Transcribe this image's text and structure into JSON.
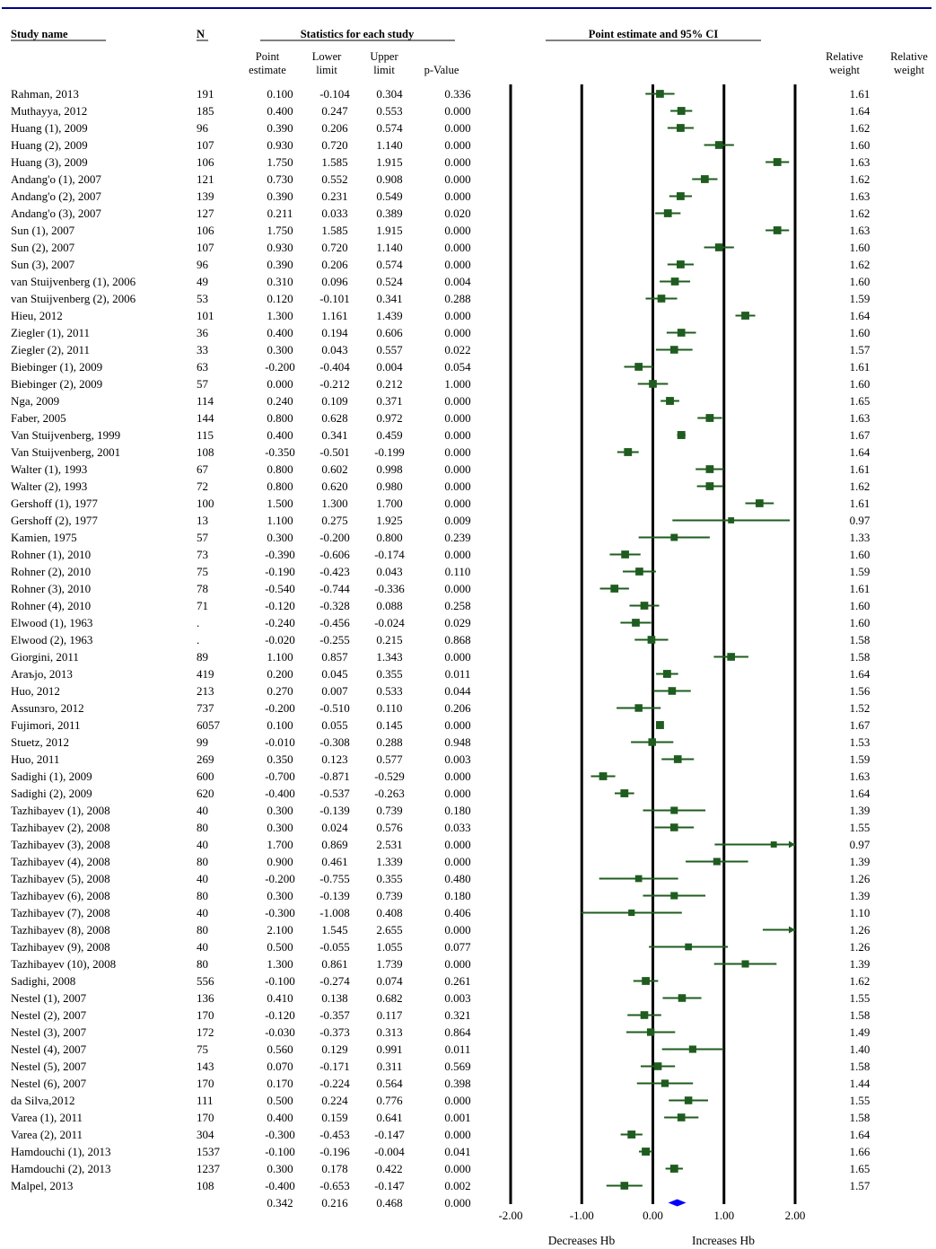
{
  "headers": {
    "study_name": "Study name",
    "n": "N",
    "stats_group": "Statistics for each study",
    "ci_group": "Point estimate and 95% CI",
    "point_estimate": [
      "Point",
      "estimate"
    ],
    "lower_limit": [
      "Lower",
      "limit"
    ],
    "upper_limit": [
      "Upper",
      "limit"
    ],
    "p_value": "p-Value",
    "relative_weight_1": [
      "Relative",
      "weight"
    ],
    "relative_weight_2": [
      "Relative",
      "weight"
    ]
  },
  "axis_labels": {
    "left": "Decreases Hb",
    "right": "Increases Hb"
  },
  "colors": {
    "study_marker": "#1f5c1f",
    "summary_diamond": "#0000ff",
    "top_rule": "#00008b"
  },
  "chart_data": {
    "type": "forest",
    "xlim": [
      -2,
      2
    ],
    "x_ticks": [
      "-2.00",
      "-1.00",
      "0.00",
      "1.00",
      "2.00"
    ],
    "x_tick_values": [
      -2,
      -1,
      0,
      1,
      2
    ],
    "grid": false,
    "studies": [
      {
        "name": "Rahman, 2013",
        "n": "191",
        "est": "0.100",
        "lower": "-0.104",
        "upper": "0.304",
        "p": "0.336",
        "weight": "1.61"
      },
      {
        "name": "Muthayya, 2012",
        "n": "185",
        "est": "0.400",
        "lower": "0.247",
        "upper": "0.553",
        "p": "0.000",
        "weight": "1.64"
      },
      {
        "name": "Huang (1), 2009",
        "n": "96",
        "est": "0.390",
        "lower": "0.206",
        "upper": "0.574",
        "p": "0.000",
        "weight": "1.62"
      },
      {
        "name": "Huang (2), 2009",
        "n": "107",
        "est": "0.930",
        "lower": "0.720",
        "upper": "1.140",
        "p": "0.000",
        "weight": "1.60"
      },
      {
        "name": "Huang (3), 2009",
        "n": "106",
        "est": "1.750",
        "lower": "1.585",
        "upper": "1.915",
        "p": "0.000",
        "weight": "1.63"
      },
      {
        "name": "Andang'o (1), 2007",
        "n": "121",
        "est": "0.730",
        "lower": "0.552",
        "upper": "0.908",
        "p": "0.000",
        "weight": "1.62"
      },
      {
        "name": "Andang'o (2), 2007",
        "n": "139",
        "est": "0.390",
        "lower": "0.231",
        "upper": "0.549",
        "p": "0.000",
        "weight": "1.63"
      },
      {
        "name": "Andang'o (3), 2007",
        "n": "127",
        "est": "0.211",
        "lower": "0.033",
        "upper": "0.389",
        "p": "0.020",
        "weight": "1.62"
      },
      {
        "name": "Sun (1), 2007",
        "n": "106",
        "est": "1.750",
        "lower": "1.585",
        "upper": "1.915",
        "p": "0.000",
        "weight": "1.63"
      },
      {
        "name": "Sun (2), 2007",
        "n": "107",
        "est": "0.930",
        "lower": "0.720",
        "upper": "1.140",
        "p": "0.000",
        "weight": "1.60"
      },
      {
        "name": "Sun (3), 2007",
        "n": "96",
        "est": "0.390",
        "lower": "0.206",
        "upper": "0.574",
        "p": "0.000",
        "weight": "1.62"
      },
      {
        "name": "van Stuijvenberg (1), 2006",
        "n": "49",
        "est": "0.310",
        "lower": "0.096",
        "upper": "0.524",
        "p": "0.004",
        "weight": "1.60"
      },
      {
        "name": "van Stuijvenberg (2), 2006",
        "n": "53",
        "est": "0.120",
        "lower": "-0.101",
        "upper": "0.341",
        "p": "0.288",
        "weight": "1.59"
      },
      {
        "name": "Hieu, 2012",
        "n": "101",
        "est": "1.300",
        "lower": "1.161",
        "upper": "1.439",
        "p": "0.000",
        "weight": "1.64"
      },
      {
        "name": "Ziegler (1), 2011",
        "n": "36",
        "est": "0.400",
        "lower": "0.194",
        "upper": "0.606",
        "p": "0.000",
        "weight": "1.60"
      },
      {
        "name": "Ziegler (2), 2011",
        "n": "33",
        "est": "0.300",
        "lower": "0.043",
        "upper": "0.557",
        "p": "0.022",
        "weight": "1.57"
      },
      {
        "name": "Biebinger (1), 2009",
        "n": "63",
        "est": "-0.200",
        "lower": "-0.404",
        "upper": "0.004",
        "p": "0.054",
        "weight": "1.61"
      },
      {
        "name": "Biebinger (2), 2009",
        "n": "57",
        "est": "0.000",
        "lower": "-0.212",
        "upper": "0.212",
        "p": "1.000",
        "weight": "1.60"
      },
      {
        "name": "Nga, 2009",
        "n": "114",
        "est": "0.240",
        "lower": "0.109",
        "upper": "0.371",
        "p": "0.000",
        "weight": "1.65"
      },
      {
        "name": "Faber, 2005",
        "n": "144",
        "est": "0.800",
        "lower": "0.628",
        "upper": "0.972",
        "p": "0.000",
        "weight": "1.63"
      },
      {
        "name": "Van Stuijvenberg, 1999",
        "n": "115",
        "est": "0.400",
        "lower": "0.341",
        "upper": "0.459",
        "p": "0.000",
        "weight": "1.67"
      },
      {
        "name": "Van Stuijvenberg, 2001",
        "n": "108",
        "est": "-0.350",
        "lower": "-0.501",
        "upper": "-0.199",
        "p": "0.000",
        "weight": "1.64"
      },
      {
        "name": "Walter (1), 1993",
        "n": "67",
        "est": "0.800",
        "lower": "0.602",
        "upper": "0.998",
        "p": "0.000",
        "weight": "1.61"
      },
      {
        "name": "Walter (2), 1993",
        "n": "72",
        "est": "0.800",
        "lower": "0.620",
        "upper": "0.980",
        "p": "0.000",
        "weight": "1.62"
      },
      {
        "name": "Gershoff (1), 1977",
        "n": "100",
        "est": "1.500",
        "lower": "1.300",
        "upper": "1.700",
        "p": "0.000",
        "weight": "1.61"
      },
      {
        "name": "Gershoff (2), 1977",
        "n": "13",
        "est": "1.100",
        "lower": "0.275",
        "upper": "1.925",
        "p": "0.009",
        "weight": "0.97"
      },
      {
        "name": "Kamien, 1975",
        "n": "57",
        "est": "0.300",
        "lower": "-0.200",
        "upper": "0.800",
        "p": "0.239",
        "weight": "1.33"
      },
      {
        "name": "Rohner (1), 2010",
        "n": "73",
        "est": "-0.390",
        "lower": "-0.606",
        "upper": "-0.174",
        "p": "0.000",
        "weight": "1.60"
      },
      {
        "name": "Rohner (2), 2010",
        "n": "75",
        "est": "-0.190",
        "lower": "-0.423",
        "upper": "0.043",
        "p": "0.110",
        "weight": "1.59"
      },
      {
        "name": "Rohner (3), 2010",
        "n": "78",
        "est": "-0.540",
        "lower": "-0.744",
        "upper": "-0.336",
        "p": "0.000",
        "weight": "1.61"
      },
      {
        "name": "Rohner (4), 2010",
        "n": "71",
        "est": "-0.120",
        "lower": "-0.328",
        "upper": "0.088",
        "p": "0.258",
        "weight": "1.60"
      },
      {
        "name": "Elwood (1), 1963",
        "n": ".",
        "est": "-0.240",
        "lower": "-0.456",
        "upper": "-0.024",
        "p": "0.029",
        "weight": "1.60"
      },
      {
        "name": "Elwood (2), 1963",
        "n": ".",
        "est": "-0.020",
        "lower": "-0.255",
        "upper": "0.215",
        "p": "0.868",
        "weight": "1.58"
      },
      {
        "name": "Giorgini, 2011",
        "n": "89",
        "est": "1.100",
        "lower": "0.857",
        "upper": "1.343",
        "p": "0.000",
        "weight": "1.58"
      },
      {
        "name": "Araъjo, 2013",
        "n": "419",
        "est": "0.200",
        "lower": "0.045",
        "upper": "0.355",
        "p": "0.011",
        "weight": "1.64"
      },
      {
        "name": "Huo, 2012",
        "n": "213",
        "est": "0.270",
        "lower": "0.007",
        "upper": "0.533",
        "p": "0.044",
        "weight": "1.56"
      },
      {
        "name": "Assunзго, 2012",
        "n": "737",
        "est": "-0.200",
        "lower": "-0.510",
        "upper": "0.110",
        "p": "0.206",
        "weight": "1.52"
      },
      {
        "name": "Fujimori, 2011",
        "n": "6057",
        "est": "0.100",
        "lower": "0.055",
        "upper": "0.145",
        "p": "0.000",
        "weight": "1.67"
      },
      {
        "name": "Stuetz, 2012",
        "n": "99",
        "est": "-0.010",
        "lower": "-0.308",
        "upper": "0.288",
        "p": "0.948",
        "weight": "1.53"
      },
      {
        "name": "Huo, 2011",
        "n": "269",
        "est": "0.350",
        "lower": "0.123",
        "upper": "0.577",
        "p": "0.003",
        "weight": "1.59"
      },
      {
        "name": "Sadighi (1), 2009",
        "n": "600",
        "est": "-0.700",
        "lower": "-0.871",
        "upper": "-0.529",
        "p": "0.000",
        "weight": "1.63"
      },
      {
        "name": "Sadighi (2), 2009",
        "n": "620",
        "est": "-0.400",
        "lower": "-0.537",
        "upper": "-0.263",
        "p": "0.000",
        "weight": "1.64"
      },
      {
        "name": "Tazhibayev (1), 2008",
        "n": "40",
        "est": "0.300",
        "lower": "-0.139",
        "upper": "0.739",
        "p": "0.180",
        "weight": "1.39"
      },
      {
        "name": "Tazhibayev (2), 2008",
        "n": "80",
        "est": "0.300",
        "lower": "0.024",
        "upper": "0.576",
        "p": "0.033",
        "weight": "1.55"
      },
      {
        "name": "Tazhibayev (3), 2008",
        "n": "40",
        "est": "1.700",
        "lower": "0.869",
        "upper": "2.531",
        "p": "0.000",
        "weight": "0.97"
      },
      {
        "name": "Tazhibayev (4), 2008",
        "n": "80",
        "est": "0.900",
        "lower": "0.461",
        "upper": "1.339",
        "p": "0.000",
        "weight": "1.39"
      },
      {
        "name": "Tazhibayev (5), 2008",
        "n": "40",
        "est": "-0.200",
        "lower": "-0.755",
        "upper": "0.355",
        "p": "0.480",
        "weight": "1.26"
      },
      {
        "name": "Tazhibayev (6), 2008",
        "n": "80",
        "est": "0.300",
        "lower": "-0.139",
        "upper": "0.739",
        "p": "0.180",
        "weight": "1.39"
      },
      {
        "name": "Tazhibayev (7), 2008",
        "n": "40",
        "est": "-0.300",
        "lower": "-1.008",
        "upper": "0.408",
        "p": "0.406",
        "weight": "1.10"
      },
      {
        "name": "Tazhibayev (8), 2008",
        "n": "80",
        "est": "2.100",
        "lower": "1.545",
        "upper": "2.655",
        "p": "0.000",
        "weight": "1.26"
      },
      {
        "name": "Tazhibayev (9), 2008",
        "n": "40",
        "est": "0.500",
        "lower": "-0.055",
        "upper": "1.055",
        "p": "0.077",
        "weight": "1.26"
      },
      {
        "name": "Tazhibayev (10), 2008",
        "n": "80",
        "est": "1.300",
        "lower": "0.861",
        "upper": "1.739",
        "p": "0.000",
        "weight": "1.39"
      },
      {
        "name": "Sadighi, 2008",
        "n": "556",
        "est": "-0.100",
        "lower": "-0.274",
        "upper": "0.074",
        "p": "0.261",
        "weight": "1.62"
      },
      {
        "name": "Nestel (1), 2007",
        "n": "136",
        "est": "0.410",
        "lower": "0.138",
        "upper": "0.682",
        "p": "0.003",
        "weight": "1.55"
      },
      {
        "name": "Nestel (2), 2007",
        "n": "170",
        "est": "-0.120",
        "lower": "-0.357",
        "upper": "0.117",
        "p": "0.321",
        "weight": "1.58"
      },
      {
        "name": "Nestel (3), 2007",
        "n": "172",
        "est": "-0.030",
        "lower": "-0.373",
        "upper": "0.313",
        "p": "0.864",
        "weight": "1.49"
      },
      {
        "name": "Nestel (4), 2007",
        "n": "75",
        "est": "0.560",
        "lower": "0.129",
        "upper": "0.991",
        "p": "0.011",
        "weight": "1.40"
      },
      {
        "name": "Nestel (5), 2007",
        "n": "143",
        "est": "0.070",
        "lower": "-0.171",
        "upper": "0.311",
        "p": "0.569",
        "weight": "1.58"
      },
      {
        "name": "Nestel (6), 2007",
        "n": "170",
        "est": "0.170",
        "lower": "-0.224",
        "upper": "0.564",
        "p": "0.398",
        "weight": "1.44"
      },
      {
        "name": "da Silva,2012",
        "n": "111",
        "est": "0.500",
        "lower": "0.224",
        "upper": "0.776",
        "p": "0.000",
        "weight": "1.55"
      },
      {
        "name": "Varea (1), 2011",
        "n": "170",
        "est": "0.400",
        "lower": "0.159",
        "upper": "0.641",
        "p": "0.001",
        "weight": "1.58"
      },
      {
        "name": "Varea (2), 2011",
        "n": "304",
        "est": "-0.300",
        "lower": "-0.453",
        "upper": "-0.147",
        "p": "0.000",
        "weight": "1.64"
      },
      {
        "name": "Hamdouchi (1), 2013",
        "n": "1537",
        "est": "-0.100",
        "lower": "-0.196",
        "upper": "-0.004",
        "p": "0.041",
        "weight": "1.66"
      },
      {
        "name": "Hamdouchi (2), 2013",
        "n": "1237",
        "est": "0.300",
        "lower": "0.178",
        "upper": "0.422",
        "p": "0.000",
        "weight": "1.65"
      },
      {
        "name": "Malpel, 2013",
        "n": "108",
        "est": "-0.400",
        "lower": "-0.653",
        "upper": "-0.147",
        "p": "0.002",
        "weight": "1.57"
      }
    ],
    "summary": {
      "est": "0.342",
      "lower": "0.216",
      "upper": "0.468",
      "p": "0.000"
    }
  }
}
